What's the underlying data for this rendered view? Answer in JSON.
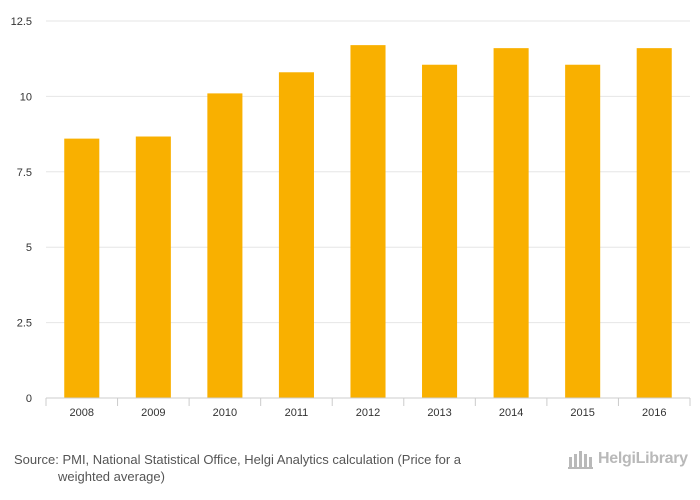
{
  "chart_data": {
    "type": "bar",
    "title": "",
    "xlabel": "",
    "ylabel": "",
    "categories": [
      "2008",
      "2009",
      "2010",
      "2011",
      "2012",
      "2013",
      "2014",
      "2015",
      "2016"
    ],
    "values": [
      8.6,
      8.67,
      10.1,
      10.8,
      11.7,
      11.05,
      11.6,
      11.05,
      11.6
    ],
    "ylim": [
      0,
      12.5
    ],
    "yticks": [
      "0",
      "2.5",
      "5",
      "7.5",
      "10",
      "12.5"
    ],
    "ytick_values": [
      0,
      2.5,
      5,
      7.5,
      10,
      12.5
    ],
    "grid": true,
    "bar_color": "#f9b000"
  },
  "footer": {
    "source_prefix": "Source:",
    "source_line1": "PMI, National Statistical Office, Helgi Analytics calculation (Price for a",
    "source_line2": "weighted average)"
  },
  "logo": {
    "text": "HelgiLibrary",
    "color": "#b9b9b9"
  }
}
